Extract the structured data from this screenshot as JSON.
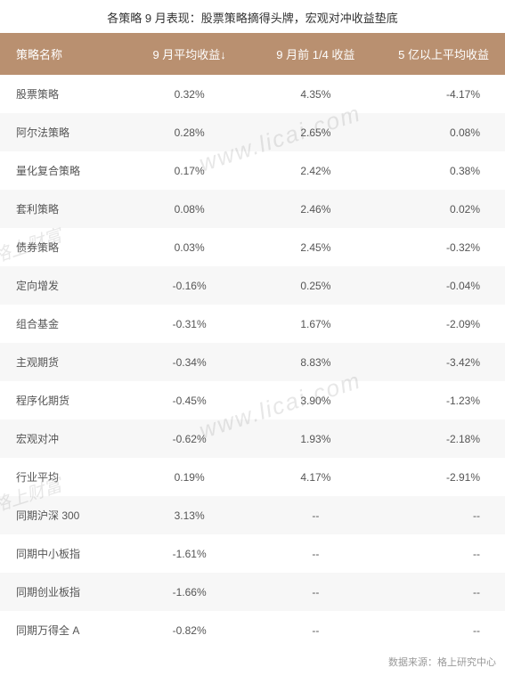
{
  "title": "各策略 9 月表现：股票策略摘得头牌，宏观对冲收益垫底",
  "columns": [
    "策略名称",
    "9 月平均收益↓",
    "9 月前 1/4 收益",
    "5 亿以上平均收益"
  ],
  "rows": [
    [
      "股票策略",
      "0.32%",
      "4.35%",
      "-4.17%"
    ],
    [
      "阿尔法策略",
      "0.28%",
      "2.65%",
      "0.08%"
    ],
    [
      "量化复合策略",
      "0.17%",
      "2.42%",
      "0.38%"
    ],
    [
      "套利策略",
      "0.08%",
      "2.46%",
      "0.02%"
    ],
    [
      "债券策略",
      "0.03%",
      "2.45%",
      "-0.32%"
    ],
    [
      "定向增发",
      "-0.16%",
      "0.25%",
      "-0.04%"
    ],
    [
      "组合基金",
      "-0.31%",
      "1.67%",
      "-2.09%"
    ],
    [
      "主观期货",
      "-0.34%",
      "8.83%",
      "-3.42%"
    ],
    [
      "程序化期货",
      "-0.45%",
      "3.90%",
      "-1.23%"
    ],
    [
      "宏观对冲",
      "-0.62%",
      "1.93%",
      "-2.18%"
    ],
    [
      "行业平均",
      "0.19%",
      "4.17%",
      "-2.91%"
    ],
    [
      "同期沪深 300",
      "3.13%",
      "--",
      "--"
    ],
    [
      "同期中小板指",
      "-1.61%",
      "--",
      "--"
    ],
    [
      "同期创业板指",
      "-1.66%",
      "--",
      "--"
    ],
    [
      "同期万得全 A",
      "-0.82%",
      "--",
      "--"
    ]
  ],
  "footer": "数据来源：格上研究中心",
  "watermarks": {
    "url": "www.licai.com",
    "brand": "格上财富"
  },
  "style": {
    "header_bg": "#b99070",
    "header_text": "#ffffff",
    "row_odd_bg": "#ffffff",
    "row_even_bg": "#f7f7f7",
    "text_color": "#555555",
    "title_color": "#333333",
    "footer_color": "#999999",
    "watermark_color": "rgba(120,120,120,0.18)",
    "font_family": "Microsoft YaHei",
    "title_fontsize": 13,
    "header_fontsize": 13,
    "cell_fontsize": 12,
    "footer_fontsize": 11
  }
}
